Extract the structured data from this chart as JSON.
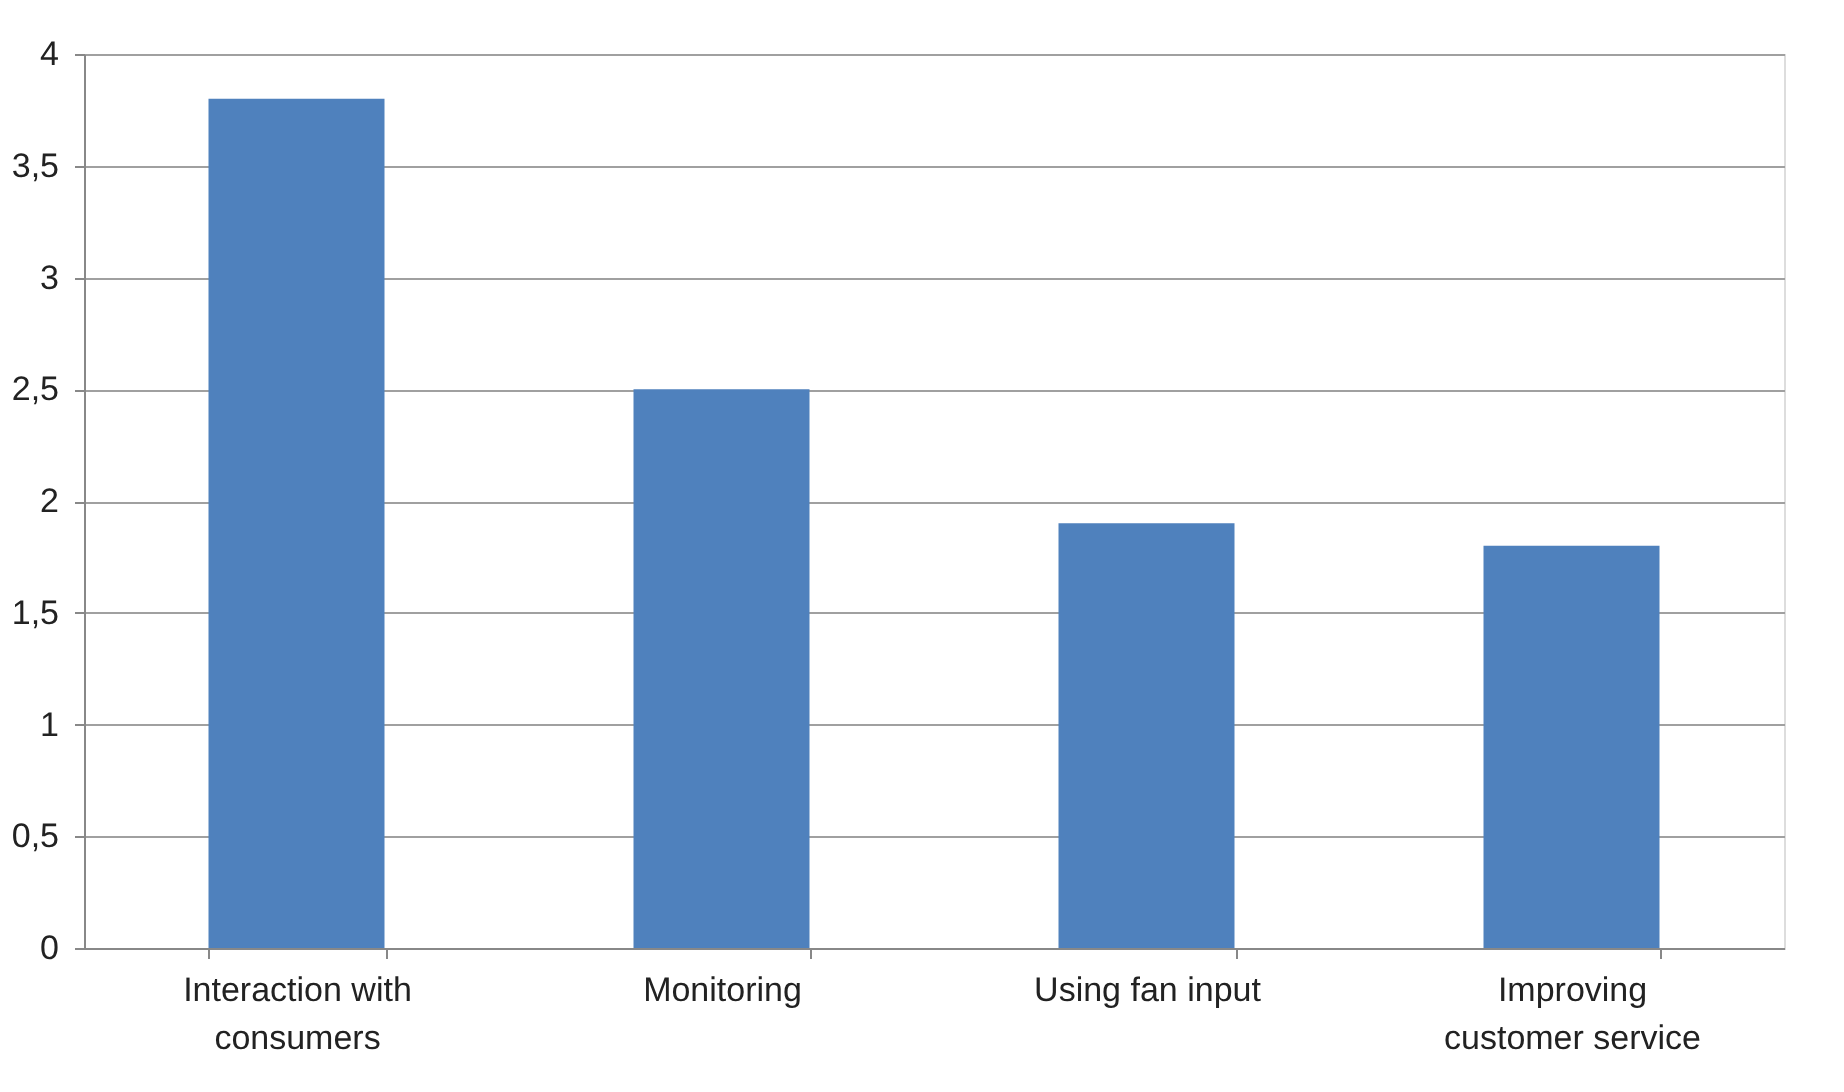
{
  "chart_data": {
    "type": "bar",
    "categories": [
      "Interaction with consumers",
      "Monitoring",
      "Using fan input",
      "Improving customer service"
    ],
    "values": [
      3.8,
      2.5,
      1.9,
      1.8
    ],
    "color": "#4f81bd",
    "ylim": [
      0,
      4
    ],
    "yticks": [
      0,
      {
        "value": 0.5,
        "label": "0,5"
      },
      1,
      {
        "value": 1.5,
        "label": "1,5"
      },
      2,
      {
        "value": 2.5,
        "label": "2,5"
      },
      3,
      {
        "value": 3.5,
        "label": "3,5"
      },
      4
    ],
    "grid": "y"
  }
}
